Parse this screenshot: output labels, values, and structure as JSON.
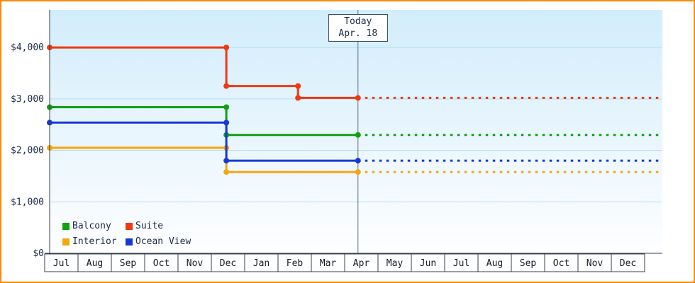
{
  "chart_data": {
    "type": "line",
    "y_axis": {
      "tick_values": [
        0,
        1000,
        2000,
        3000,
        4000
      ],
      "tick_labels": [
        "$0",
        "$1,000",
        "$2,000",
        "$3,000",
        "$4,000"
      ],
      "max_value": 4730
    },
    "x_axis": {
      "months": [
        "Jul",
        "Aug",
        "Sep",
        "Oct",
        "Nov",
        "Dec",
        "Jan",
        "Feb",
        "Mar",
        "Apr",
        "May",
        "Jun",
        "Jul",
        "Aug",
        "Sep",
        "Oct",
        "Nov",
        "Dec"
      ]
    },
    "today": {
      "label_line1": "Today",
      "label_line2": "Apr. 18",
      "month_position": 9.4
    },
    "forecast_end_month": 18.45,
    "series": [
      {
        "name": "Balcony",
        "color": "#10a010",
        "points": [
          [
            0.15,
            2840
          ],
          [
            5.45,
            2840
          ],
          [
            5.45,
            2300
          ],
          [
            9.4,
            2300
          ]
        ],
        "forecast_value": 2300
      },
      {
        "name": "Suite",
        "color": "#ee3911",
        "points": [
          [
            0.15,
            4000
          ],
          [
            5.45,
            4000
          ],
          [
            5.45,
            3250
          ],
          [
            7.6,
            3250
          ],
          [
            7.6,
            3020
          ],
          [
            9.4,
            3020
          ]
        ],
        "forecast_value": 3020
      },
      {
        "name": "Interior",
        "color": "#f3a60e",
        "points": [
          [
            0.15,
            2050
          ],
          [
            5.45,
            2050
          ],
          [
            5.45,
            1580
          ],
          [
            9.4,
            1580
          ]
        ],
        "forecast_value": 1580
      },
      {
        "name": "Ocean View",
        "color": "#1838d6",
        "points": [
          [
            0.15,
            2540
          ],
          [
            5.45,
            2540
          ],
          [
            5.45,
            1800
          ],
          [
            9.4,
            1800
          ]
        ],
        "forecast_value": 1800
      }
    ]
  },
  "colors": {
    "frame_border": "#ff8a00",
    "grid": "#b5e0f2",
    "axis": "#37414f",
    "today_line": "#5a6a80",
    "plot_bg_top": "#d2edfb",
    "plot_bg_bottom": "#fefeff",
    "month_cell_bg": "#ffffff",
    "text": "#1c2b4a"
  }
}
